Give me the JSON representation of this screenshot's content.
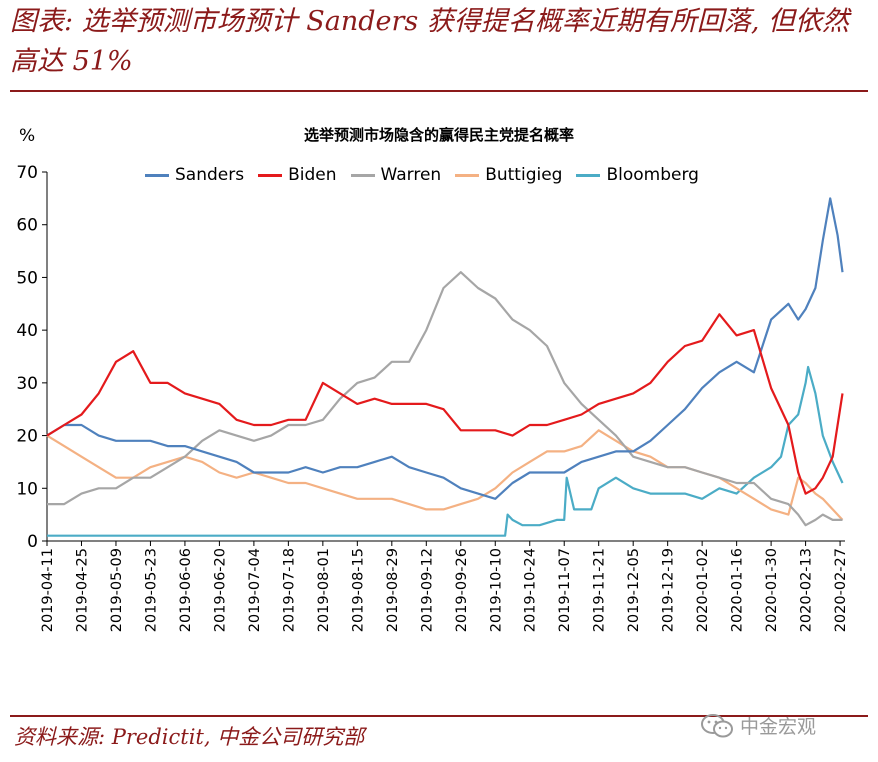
{
  "header": {
    "headline": "图表: 选举预测市场预计 Sanders 获得提名概率近期有所回落, 但依然高达 51%"
  },
  "footer": {
    "source": "资料来源: Predictit, 中金公司研究部",
    "watermark": "中金宏观"
  },
  "colors": {
    "accent": "#8b1a1a",
    "Sanders": "#4f81bd",
    "Biden": "#e41a1c",
    "Warren": "#a6a6a6",
    "Buttigieg": "#f4b183",
    "Bloomberg": "#4bacc6"
  },
  "chart_data": {
    "type": "line",
    "title": "选举预测市场隐含的赢得民主党提名概率",
    "ylabel": "%",
    "ylim": [
      0,
      70
    ],
    "yticks": [
      0,
      10,
      20,
      30,
      40,
      50,
      60,
      70
    ],
    "grid": false,
    "legend_position": "top",
    "x_start": "2019-04-11",
    "x_end": "2020-02-29",
    "xticks": [
      "2019-04-11",
      "2019-04-25",
      "2019-05-09",
      "2019-05-23",
      "2019-06-06",
      "2019-06-20",
      "2019-07-04",
      "2019-07-18",
      "2019-08-01",
      "2019-08-15",
      "2019-08-29",
      "2019-09-12",
      "2019-09-26",
      "2019-10-10",
      "2019-10-24",
      "2019-11-07",
      "2019-11-21",
      "2019-12-05",
      "2019-12-19",
      "2020-01-02",
      "2020-01-16",
      "2020-01-30",
      "2020-02-13",
      "2020-02-27"
    ],
    "series": [
      {
        "name": "Sanders",
        "color": "#4f81bd",
        "points": [
          [
            "2019-04-11",
            20
          ],
          [
            "2019-04-18",
            22
          ],
          [
            "2019-04-25",
            22
          ],
          [
            "2019-05-02",
            20
          ],
          [
            "2019-05-09",
            19
          ],
          [
            "2019-05-16",
            19
          ],
          [
            "2019-05-23",
            19
          ],
          [
            "2019-05-30",
            18
          ],
          [
            "2019-06-06",
            18
          ],
          [
            "2019-06-13",
            17
          ],
          [
            "2019-06-20",
            16
          ],
          [
            "2019-06-27",
            15
          ],
          [
            "2019-07-04",
            13
          ],
          [
            "2019-07-11",
            13
          ],
          [
            "2019-07-18",
            13
          ],
          [
            "2019-07-25",
            14
          ],
          [
            "2019-08-01",
            13
          ],
          [
            "2019-08-08",
            14
          ],
          [
            "2019-08-15",
            14
          ],
          [
            "2019-08-22",
            15
          ],
          [
            "2019-08-29",
            16
          ],
          [
            "2019-09-05",
            14
          ],
          [
            "2019-09-12",
            13
          ],
          [
            "2019-09-19",
            12
          ],
          [
            "2019-09-26",
            10
          ],
          [
            "2019-10-03",
            9
          ],
          [
            "2019-10-10",
            8
          ],
          [
            "2019-10-17",
            11
          ],
          [
            "2019-10-24",
            13
          ],
          [
            "2019-10-31",
            13
          ],
          [
            "2019-11-07",
            13
          ],
          [
            "2019-11-14",
            15
          ],
          [
            "2019-11-21",
            16
          ],
          [
            "2019-11-28",
            17
          ],
          [
            "2019-12-05",
            17
          ],
          [
            "2019-12-12",
            19
          ],
          [
            "2019-12-19",
            22
          ],
          [
            "2019-12-26",
            25
          ],
          [
            "2020-01-02",
            29
          ],
          [
            "2020-01-09",
            32
          ],
          [
            "2020-01-16",
            34
          ],
          [
            "2020-01-23",
            32
          ],
          [
            "2020-01-30",
            42
          ],
          [
            "2020-02-06",
            45
          ],
          [
            "2020-02-10",
            42
          ],
          [
            "2020-02-13",
            44
          ],
          [
            "2020-02-17",
            48
          ],
          [
            "2020-02-20",
            57
          ],
          [
            "2020-02-23",
            65
          ],
          [
            "2020-02-26",
            58
          ],
          [
            "2020-02-28",
            51
          ]
        ]
      },
      {
        "name": "Biden",
        "color": "#e41a1c",
        "points": [
          [
            "2019-04-11",
            20
          ],
          [
            "2019-04-18",
            22
          ],
          [
            "2019-04-25",
            24
          ],
          [
            "2019-05-02",
            28
          ],
          [
            "2019-05-09",
            34
          ],
          [
            "2019-05-16",
            36
          ],
          [
            "2019-05-23",
            30
          ],
          [
            "2019-05-30",
            30
          ],
          [
            "2019-06-06",
            28
          ],
          [
            "2019-06-13",
            27
          ],
          [
            "2019-06-20",
            26
          ],
          [
            "2019-06-27",
            23
          ],
          [
            "2019-07-04",
            22
          ],
          [
            "2019-07-11",
            22
          ],
          [
            "2019-07-18",
            23
          ],
          [
            "2019-07-25",
            23
          ],
          [
            "2019-08-01",
            30
          ],
          [
            "2019-08-08",
            28
          ],
          [
            "2019-08-15",
            26
          ],
          [
            "2019-08-22",
            27
          ],
          [
            "2019-08-29",
            26
          ],
          [
            "2019-09-05",
            26
          ],
          [
            "2019-09-12",
            26
          ],
          [
            "2019-09-19",
            25
          ],
          [
            "2019-09-26",
            21
          ],
          [
            "2019-10-03",
            21
          ],
          [
            "2019-10-10",
            21
          ],
          [
            "2019-10-17",
            20
          ],
          [
            "2019-10-24",
            22
          ],
          [
            "2019-10-31",
            22
          ],
          [
            "2019-11-07",
            23
          ],
          [
            "2019-11-14",
            24
          ],
          [
            "2019-11-21",
            26
          ],
          [
            "2019-11-28",
            27
          ],
          [
            "2019-12-05",
            28
          ],
          [
            "2019-12-12",
            30
          ],
          [
            "2019-12-19",
            34
          ],
          [
            "2019-12-26",
            37
          ],
          [
            "2020-01-02",
            38
          ],
          [
            "2020-01-09",
            43
          ],
          [
            "2020-01-16",
            39
          ],
          [
            "2020-01-23",
            40
          ],
          [
            "2020-01-30",
            29
          ],
          [
            "2020-02-06",
            22
          ],
          [
            "2020-02-10",
            13
          ],
          [
            "2020-02-13",
            9
          ],
          [
            "2020-02-17",
            10
          ],
          [
            "2020-02-20",
            12
          ],
          [
            "2020-02-24",
            16
          ],
          [
            "2020-02-28",
            28
          ]
        ]
      },
      {
        "name": "Warren",
        "color": "#a6a6a6",
        "points": [
          [
            "2019-04-11",
            7
          ],
          [
            "2019-04-18",
            7
          ],
          [
            "2019-04-25",
            9
          ],
          [
            "2019-05-02",
            10
          ],
          [
            "2019-05-09",
            10
          ],
          [
            "2019-05-16",
            12
          ],
          [
            "2019-05-23",
            12
          ],
          [
            "2019-05-30",
            14
          ],
          [
            "2019-06-06",
            16
          ],
          [
            "2019-06-13",
            19
          ],
          [
            "2019-06-20",
            21
          ],
          [
            "2019-06-27",
            20
          ],
          [
            "2019-07-04",
            19
          ],
          [
            "2019-07-11",
            20
          ],
          [
            "2019-07-18",
            22
          ],
          [
            "2019-07-25",
            22
          ],
          [
            "2019-08-01",
            23
          ],
          [
            "2019-08-08",
            27
          ],
          [
            "2019-08-15",
            30
          ],
          [
            "2019-08-22",
            31
          ],
          [
            "2019-08-29",
            34
          ],
          [
            "2019-09-05",
            34
          ],
          [
            "2019-09-12",
            40
          ],
          [
            "2019-09-19",
            48
          ],
          [
            "2019-09-26",
            51
          ],
          [
            "2019-10-03",
            48
          ],
          [
            "2019-10-10",
            46
          ],
          [
            "2019-10-17",
            42
          ],
          [
            "2019-10-24",
            40
          ],
          [
            "2019-10-31",
            37
          ],
          [
            "2019-11-07",
            30
          ],
          [
            "2019-11-14",
            26
          ],
          [
            "2019-11-21",
            23
          ],
          [
            "2019-11-28",
            20
          ],
          [
            "2019-12-05",
            16
          ],
          [
            "2019-12-12",
            15
          ],
          [
            "2019-12-19",
            14
          ],
          [
            "2019-12-26",
            14
          ],
          [
            "2020-01-02",
            13
          ],
          [
            "2020-01-09",
            12
          ],
          [
            "2020-01-16",
            11
          ],
          [
            "2020-01-23",
            11
          ],
          [
            "2020-01-30",
            8
          ],
          [
            "2020-02-06",
            7
          ],
          [
            "2020-02-10",
            5
          ],
          [
            "2020-02-13",
            3
          ],
          [
            "2020-02-17",
            4
          ],
          [
            "2020-02-20",
            5
          ],
          [
            "2020-02-24",
            4
          ],
          [
            "2020-02-28",
            4
          ]
        ]
      },
      {
        "name": "Buttigieg",
        "color": "#f4b183",
        "points": [
          [
            "2019-04-11",
            20
          ],
          [
            "2019-04-18",
            18
          ],
          [
            "2019-04-25",
            16
          ],
          [
            "2019-05-02",
            14
          ],
          [
            "2019-05-09",
            12
          ],
          [
            "2019-05-16",
            12
          ],
          [
            "2019-05-23",
            14
          ],
          [
            "2019-05-30",
            15
          ],
          [
            "2019-06-06",
            16
          ],
          [
            "2019-06-13",
            15
          ],
          [
            "2019-06-20",
            13
          ],
          [
            "2019-06-27",
            12
          ],
          [
            "2019-07-04",
            13
          ],
          [
            "2019-07-11",
            12
          ],
          [
            "2019-07-18",
            11
          ],
          [
            "2019-07-25",
            11
          ],
          [
            "2019-08-01",
            10
          ],
          [
            "2019-08-08",
            9
          ],
          [
            "2019-08-15",
            8
          ],
          [
            "2019-08-22",
            8
          ],
          [
            "2019-08-29",
            8
          ],
          [
            "2019-09-05",
            7
          ],
          [
            "2019-09-12",
            6
          ],
          [
            "2019-09-19",
            6
          ],
          [
            "2019-09-26",
            7
          ],
          [
            "2019-10-03",
            8
          ],
          [
            "2019-10-10",
            10
          ],
          [
            "2019-10-17",
            13
          ],
          [
            "2019-10-24",
            15
          ],
          [
            "2019-10-31",
            17
          ],
          [
            "2019-11-07",
            17
          ],
          [
            "2019-11-14",
            18
          ],
          [
            "2019-11-21",
            21
          ],
          [
            "2019-11-28",
            19
          ],
          [
            "2019-12-05",
            17
          ],
          [
            "2019-12-12",
            16
          ],
          [
            "2019-12-19",
            14
          ],
          [
            "2019-12-26",
            14
          ],
          [
            "2020-01-02",
            13
          ],
          [
            "2020-01-09",
            12
          ],
          [
            "2020-01-16",
            10
          ],
          [
            "2020-01-23",
            8
          ],
          [
            "2020-01-30",
            6
          ],
          [
            "2020-02-06",
            5
          ],
          [
            "2020-02-10",
            12
          ],
          [
            "2020-02-13",
            11
          ],
          [
            "2020-02-17",
            9
          ],
          [
            "2020-02-20",
            8
          ],
          [
            "2020-02-24",
            6
          ],
          [
            "2020-02-28",
            4
          ]
        ]
      },
      {
        "name": "Bloomberg",
        "color": "#4bacc6",
        "points": [
          [
            "2019-04-11",
            1
          ],
          [
            "2019-04-25",
            1
          ],
          [
            "2019-05-23",
            1
          ],
          [
            "2019-06-20",
            1
          ],
          [
            "2019-07-18",
            1
          ],
          [
            "2019-08-15",
            1
          ],
          [
            "2019-09-12",
            1
          ],
          [
            "2019-10-10",
            1
          ],
          [
            "2019-10-14",
            1
          ],
          [
            "2019-10-15",
            5
          ],
          [
            "2019-10-17",
            4
          ],
          [
            "2019-10-21",
            3
          ],
          [
            "2019-10-28",
            3
          ],
          [
            "2019-11-04",
            4
          ],
          [
            "2019-11-07",
            4
          ],
          [
            "2019-11-08",
            12
          ],
          [
            "2019-11-11",
            6
          ],
          [
            "2019-11-18",
            6
          ],
          [
            "2019-11-21",
            10
          ],
          [
            "2019-11-28",
            12
          ],
          [
            "2019-12-05",
            10
          ],
          [
            "2019-12-12",
            9
          ],
          [
            "2019-12-19",
            9
          ],
          [
            "2019-12-26",
            9
          ],
          [
            "2020-01-02",
            8
          ],
          [
            "2020-01-09",
            10
          ],
          [
            "2020-01-16",
            9
          ],
          [
            "2020-01-23",
            12
          ],
          [
            "2020-01-30",
            14
          ],
          [
            "2020-02-03",
            16
          ],
          [
            "2020-02-06",
            22
          ],
          [
            "2020-02-10",
            24
          ],
          [
            "2020-02-13",
            30
          ],
          [
            "2020-02-14",
            33
          ],
          [
            "2020-02-17",
            28
          ],
          [
            "2020-02-20",
            20
          ],
          [
            "2020-02-24",
            15
          ],
          [
            "2020-02-28",
            11
          ]
        ]
      }
    ]
  }
}
